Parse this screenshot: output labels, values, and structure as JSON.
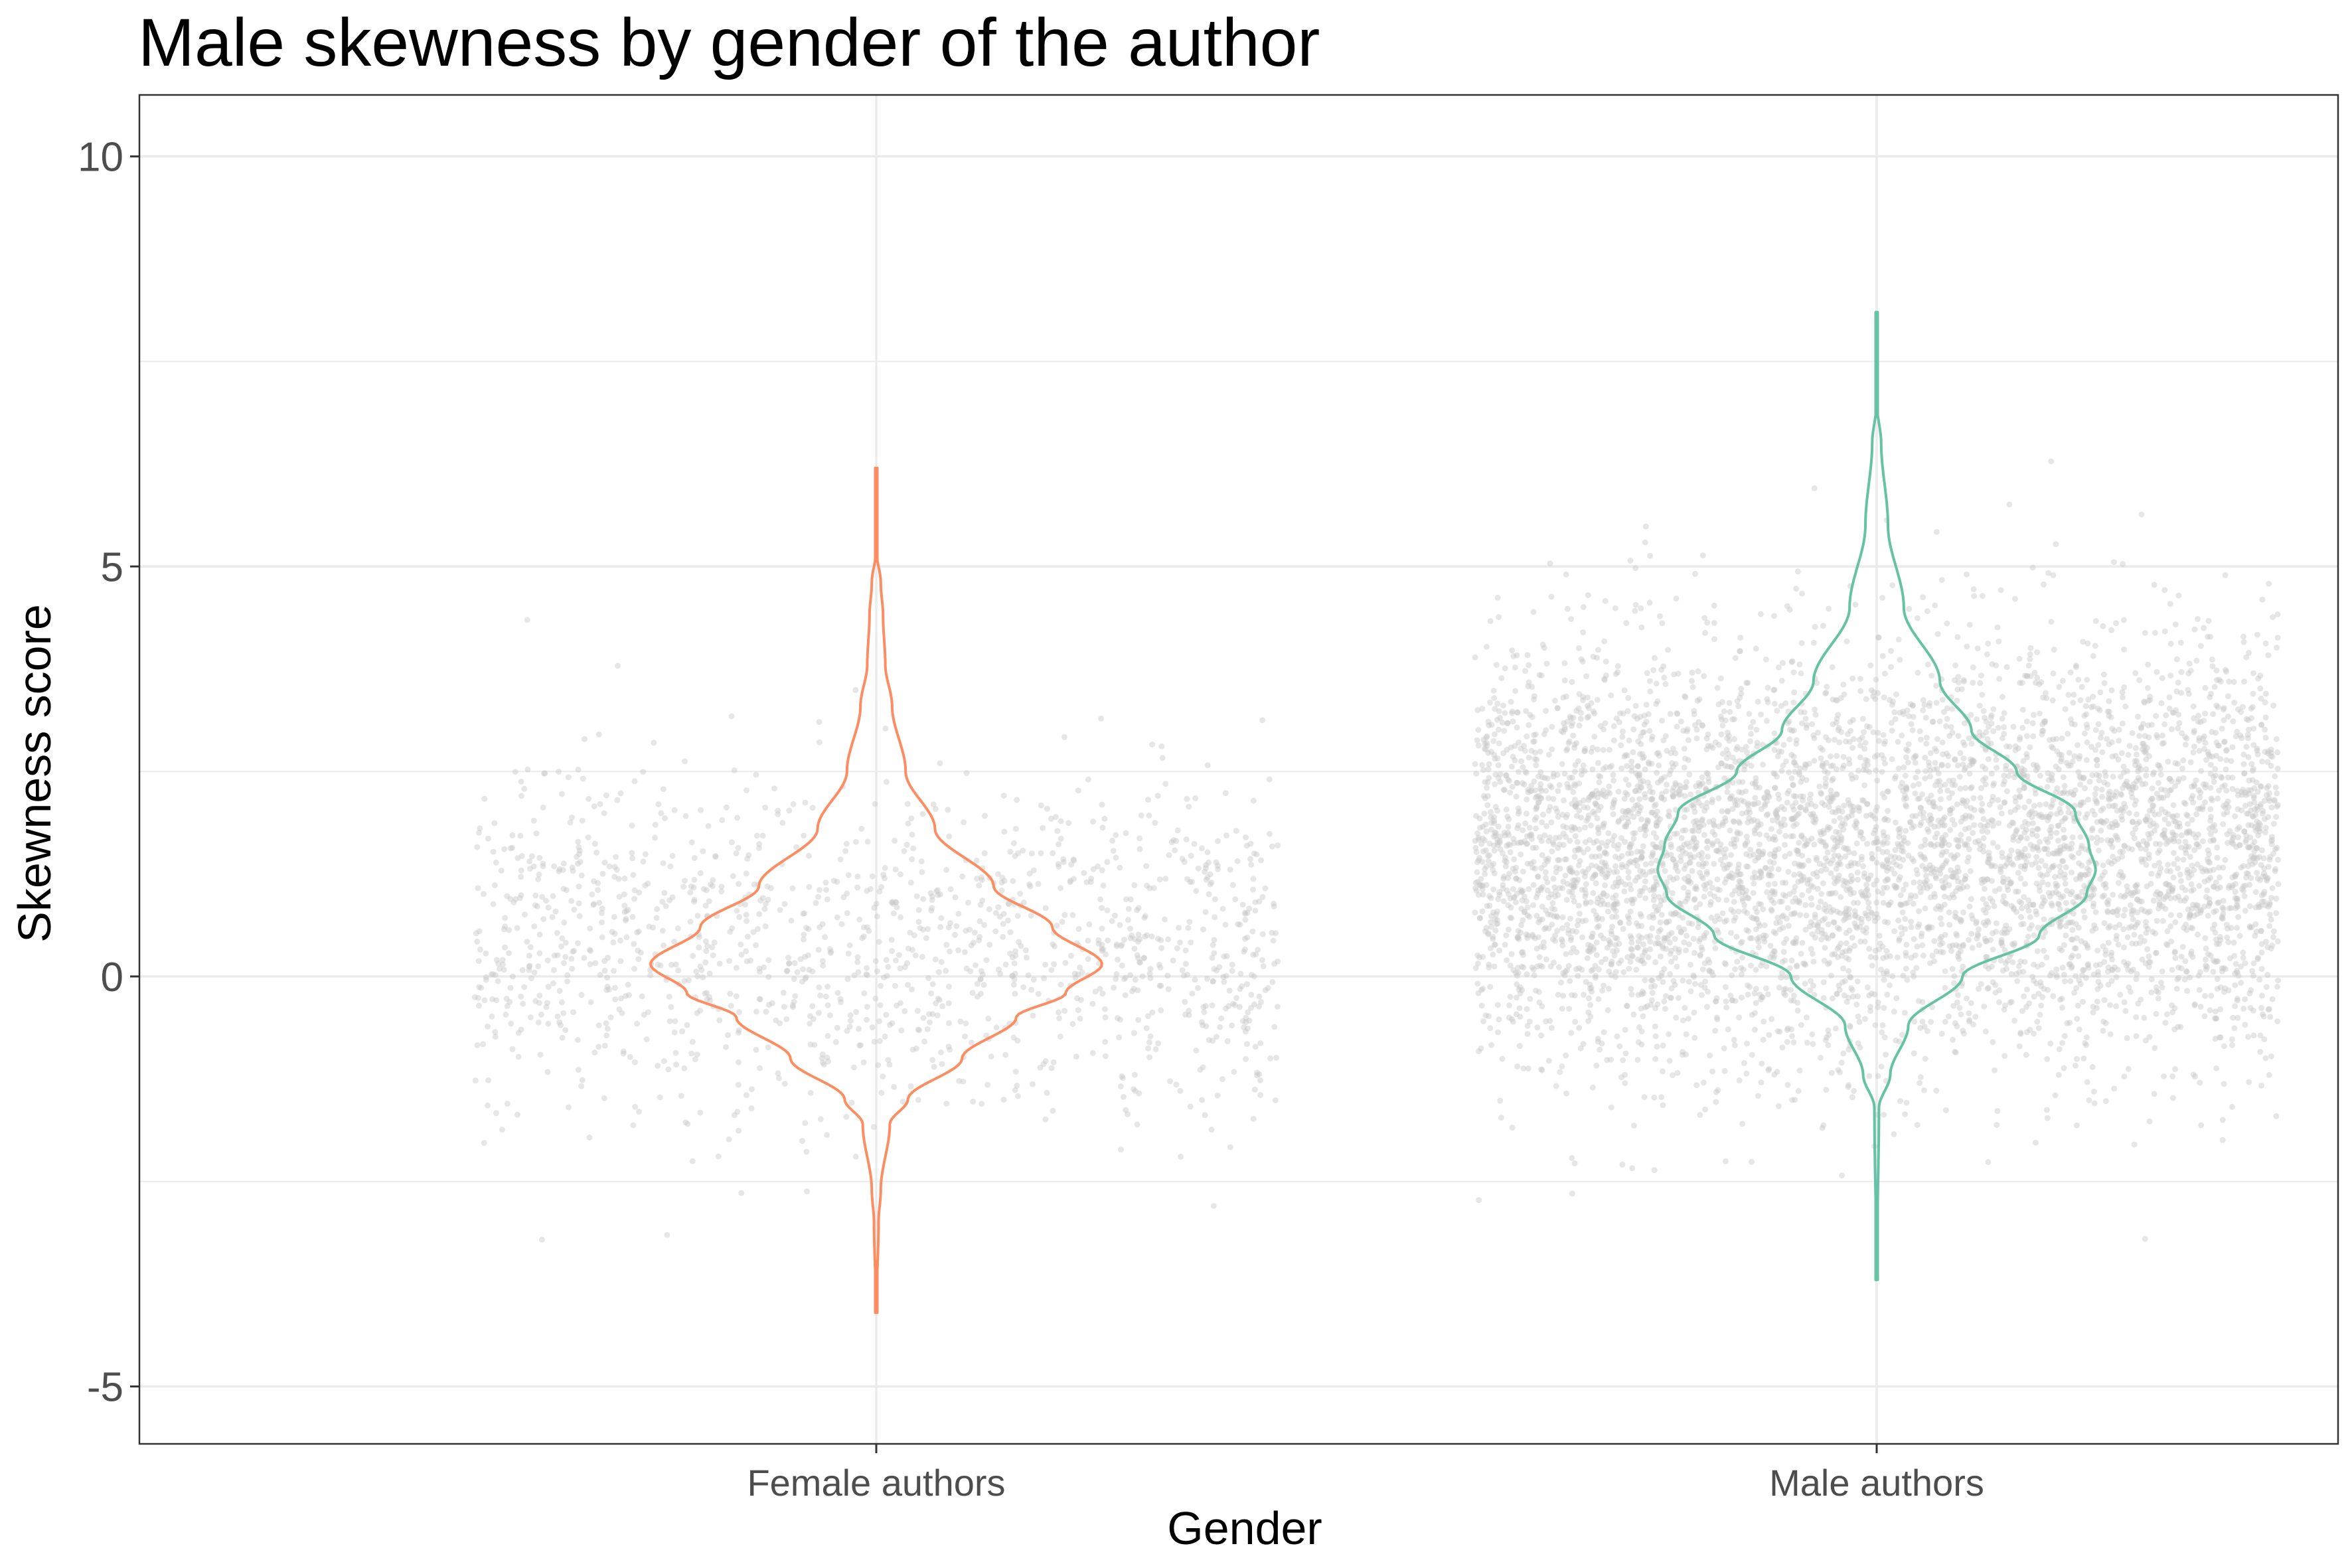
{
  "chart_data": {
    "type": "violin",
    "title": "Male skewness by gender of the author",
    "xlabel": "Gender",
    "ylabel": "Skewness score",
    "ylim": [
      -5.7,
      10.75
    ],
    "yticks": [
      -5,
      0,
      5,
      10
    ],
    "ytick_labels": [
      "-5",
      "0",
      "5",
      "10"
    ],
    "grid": true,
    "categories": [
      "Female authors",
      "Male authors"
    ],
    "series": [
      {
        "category": "Female authors",
        "color": "#fc8d62",
        "jitter_color": "#c8c8c8",
        "points_count": 1400,
        "mean": 0.35,
        "sd": 1.05,
        "range": [
          -4.1,
          6.2
        ],
        "profile": [
          {
            "y": -4.1,
            "w": 0.0
          },
          {
            "y": -3.0,
            "w": 0.01
          },
          {
            "y": -2.6,
            "w": 0.02
          },
          {
            "y": -1.8,
            "w": 0.06
          },
          {
            "y": -1.5,
            "w": 0.14
          },
          {
            "y": -1.0,
            "w": 0.38
          },
          {
            "y": -0.5,
            "w": 0.62
          },
          {
            "y": -0.2,
            "w": 0.84
          },
          {
            "y": 0.15,
            "w": 1.0
          },
          {
            "y": 0.6,
            "w": 0.78
          },
          {
            "y": 1.1,
            "w": 0.52
          },
          {
            "y": 1.8,
            "w": 0.26
          },
          {
            "y": 2.5,
            "w": 0.13
          },
          {
            "y": 3.3,
            "w": 0.07
          },
          {
            "y": 3.8,
            "w": 0.04
          },
          {
            "y": 4.4,
            "w": 0.03
          },
          {
            "y": 4.8,
            "w": 0.02
          },
          {
            "y": 5.2,
            "w": 0.0
          },
          {
            "y": 6.2,
            "w": 0.0
          }
        ]
      },
      {
        "category": "Male authors",
        "color": "#66c2a5",
        "jitter_color": "#c8c8c8",
        "points_count": 5500,
        "mean": 1.5,
        "sd": 1.25,
        "range": [
          -3.7,
          8.1
        ],
        "profile": [
          {
            "y": -3.7,
            "w": 0.0
          },
          {
            "y": -1.6,
            "w": 0.01
          },
          {
            "y": -1.2,
            "w": 0.06
          },
          {
            "y": -0.6,
            "w": 0.14
          },
          {
            "y": 0.0,
            "w": 0.38
          },
          {
            "y": 0.5,
            "w": 0.72
          },
          {
            "y": 1.0,
            "w": 0.93
          },
          {
            "y": 1.3,
            "w": 0.97
          },
          {
            "y": 1.6,
            "w": 0.94
          },
          {
            "y": 2.0,
            "w": 0.88
          },
          {
            "y": 2.5,
            "w": 0.62
          },
          {
            "y": 3.0,
            "w": 0.42
          },
          {
            "y": 3.6,
            "w": 0.28
          },
          {
            "y": 4.5,
            "w": 0.12
          },
          {
            "y": 5.5,
            "w": 0.05
          },
          {
            "y": 6.5,
            "w": 0.02
          },
          {
            "y": 7.0,
            "w": 0.0
          },
          {
            "y": 8.1,
            "w": 0.0
          }
        ]
      }
    ]
  }
}
